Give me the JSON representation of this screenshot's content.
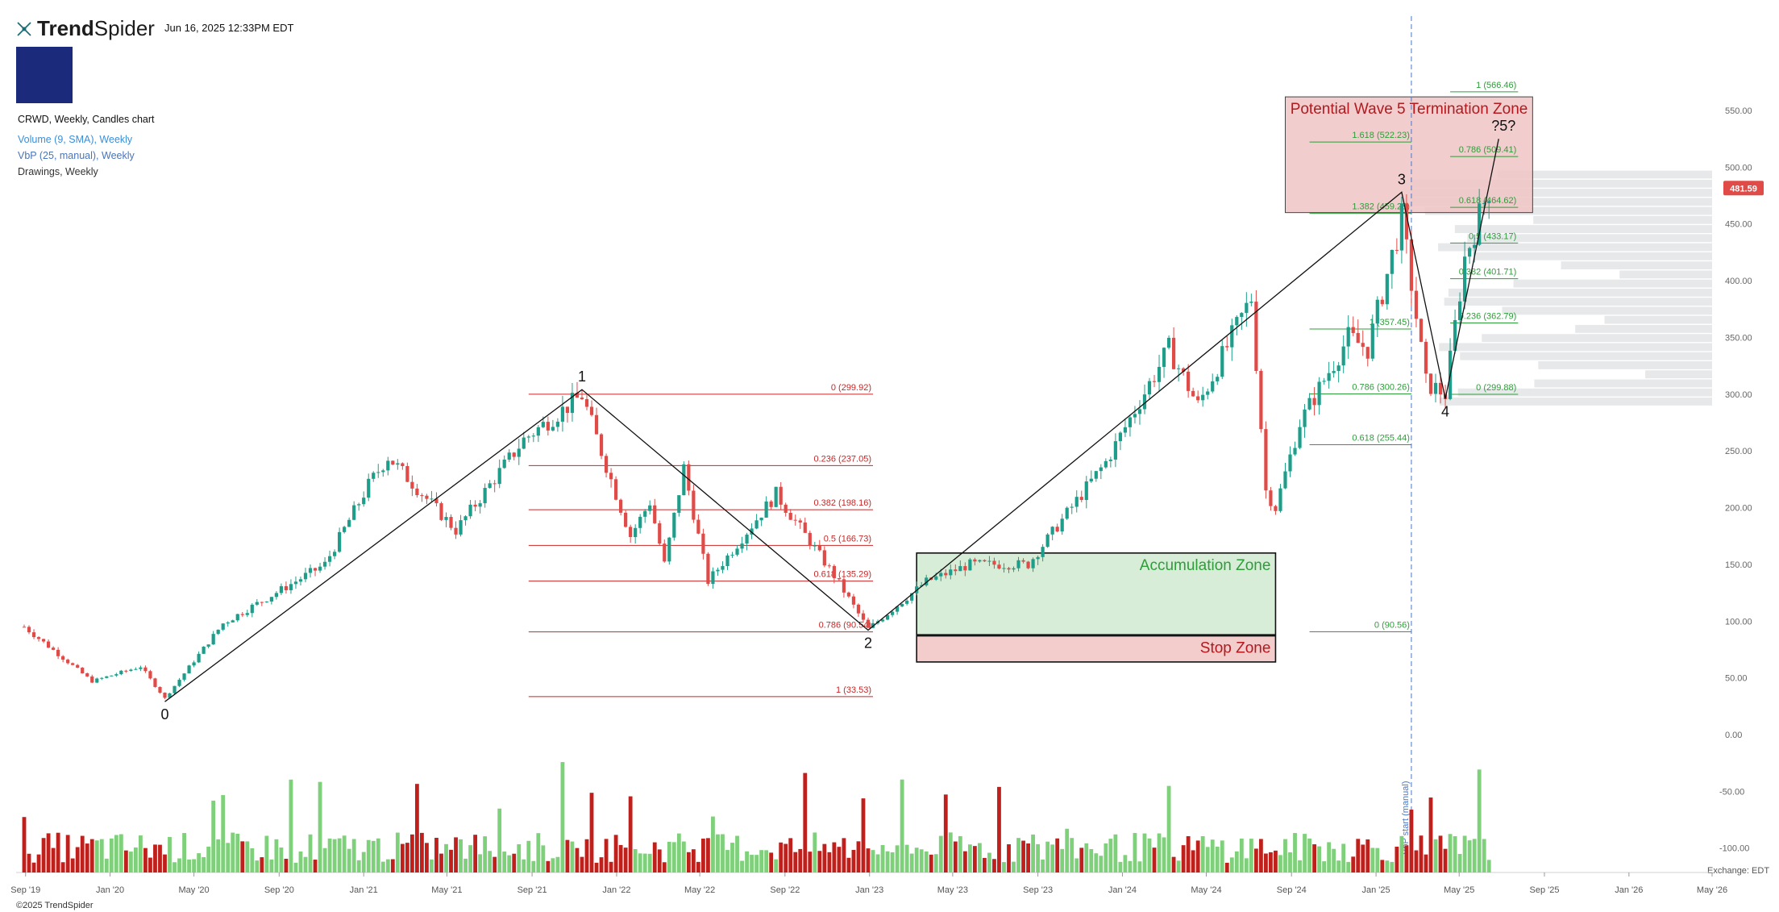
{
  "header": {
    "brand_bold": "Trend",
    "brand_light": "Spider",
    "datetime": "Jun 16, 2025 12:33PM EDT",
    "legend": [
      "CRWD, Weekly, Candles chart",
      "Volume (9, SMA), Weekly",
      "VbP (25, manual), Weekly",
      "Drawings, Weekly"
    ],
    "copyright": "©2025 TrendSpider",
    "exchange": "Exchange: EDT"
  },
  "colors": {
    "up": "#1e9e8a",
    "down": "#e04a47",
    "vol_up": "#7fd07a",
    "vol_down": "#c0201c",
    "fib_red": "#c62828",
    "fib_green": "#2e9d3a",
    "termination_fill": "#eec4c4",
    "accumulation_fill": "#d3ebd3",
    "stop_fill": "#f2c7c7",
    "vbp": "#e6e8ea",
    "price_tag": "#e04a47",
    "vline": "#4a78c8"
  },
  "chart_data": {
    "type": "candlestick",
    "symbol": "CRWD",
    "interval": "Weekly",
    "ylim": [
      -130,
      565
    ],
    "price_ticks": [
      "550.00",
      "500.00",
      "450.00",
      "400.00",
      "350.00",
      "300.00",
      "250.00",
      "200.00",
      "150.00",
      "100.00",
      "50.00",
      "0.00"
    ],
    "volume_ticks": [
      "-50.00",
      "-100.00"
    ],
    "x_ticks": [
      "Sep '19",
      "Jan '20",
      "May '20",
      "Sep '20",
      "Jan '21",
      "May '21",
      "Sep '21",
      "Jan '22",
      "May '22",
      "Sep '22",
      "Jan '23",
      "May '23",
      "Sep '23",
      "Jan '24",
      "May '24",
      "Sep '24",
      "Jan '25",
      "May '25",
      "Sep '25",
      "Jan '26",
      "May '26"
    ],
    "last_price": "481.59",
    "price_path": [
      [
        "2019-08-30",
        95
      ],
      [
        "2019-12-06",
        47
      ],
      [
        "2020-02-14",
        60
      ],
      [
        "2020-03-20",
        32
      ],
      [
        "2020-06-12",
        98
      ],
      [
        "2020-11-06",
        150
      ],
      [
        "2021-01-08",
        220
      ],
      [
        "2021-02-05",
        245
      ],
      [
        "2021-05-14",
        180
      ],
      [
        "2021-08-20",
        260
      ],
      [
        "2021-11-12",
        299
      ],
      [
        "2022-01-21",
        175
      ],
      [
        "2022-02-18",
        205
      ],
      [
        "2022-03-11",
        150
      ],
      [
        "2022-04-08",
        235
      ],
      [
        "2022-05-13",
        135
      ],
      [
        "2022-08-19",
        212
      ],
      [
        "2022-11-11",
        140
      ],
      [
        "2022-12-30",
        93
      ],
      [
        "2023-03-24",
        135
      ],
      [
        "2023-05-26",
        150
      ],
      [
        "2023-08-18",
        150
      ],
      [
        "2023-12-08",
        240
      ],
      [
        "2024-03-08",
        340
      ],
      [
        "2024-04-19",
        290
      ],
      [
        "2024-07-05",
        385
      ],
      [
        "2024-07-26",
        215
      ],
      [
        "2024-08-09",
        200
      ],
      [
        "2024-09-13",
        275
      ],
      [
        "2024-11-22",
        350
      ],
      [
        "2024-12-20",
        340
      ],
      [
        "2025-02-07",
        455
      ],
      [
        "2025-03-14",
        310
      ],
      [
        "2025-04-11",
        300
      ],
      [
        "2025-05-09",
        420
      ],
      [
        "2025-06-13",
        481.59
      ]
    ],
    "wave_labels": [
      {
        "label": "0",
        "date": "2020-03-20",
        "price": 29
      },
      {
        "label": "1",
        "date": "2021-11-12",
        "price": 304
      },
      {
        "label": "2",
        "date": "2022-12-30",
        "price": 92
      },
      {
        "label": "3",
        "date": "2025-02-07",
        "price": 478
      },
      {
        "label": "4",
        "date": "2025-04-11",
        "price": 296
      },
      {
        "label": "?5?",
        "date": "2025-06-27",
        "price": 525
      }
    ],
    "wave_targets": [
      "Potential Wave 5 Termination Zone"
    ],
    "fib_retracement_1_2": [
      {
        "label": "0 (299.92)",
        "price": 299.92
      },
      {
        "label": "0.236 (237.05)",
        "price": 237.05
      },
      {
        "label": "0.382 (198.16)",
        "price": 198.16
      },
      {
        "label": "0.5 (166.73)",
        "price": 166.73
      },
      {
        "label": "0.618 (135.29)",
        "price": 135.29
      },
      {
        "label": "0.786 (90.54)",
        "price": 90.54
      },
      {
        "label": "1 (33.53)",
        "price": 33.53
      }
    ],
    "fib_extension_3": [
      {
        "label": "1.618 (522.23)",
        "price": 522.23
      },
      {
        "label": "1.382 (459.28)",
        "price": 459.28
      },
      {
        "label": "1 (357.45)",
        "price": 357.45
      },
      {
        "label": "0.786 (300.26)",
        "price": 300.26
      },
      {
        "label": "0.618 (255.44)",
        "price": 255.44
      },
      {
        "label": "0 (90.56)",
        "price": 90.56
      }
    ],
    "fib_retracement_3_4": [
      {
        "label": "1 (566.46)",
        "price": 566.46
      },
      {
        "label": "0.786 (509.41)",
        "price": 509.41
      },
      {
        "label": "0.618 (464.62)",
        "price": 464.62
      },
      {
        "label": "0.5 (433.17)",
        "price": 433.17
      },
      {
        "label": "0.382 (401.71)",
        "price": 401.71
      },
      {
        "label": "0.236 (362.79)",
        "price": 362.79
      },
      {
        "label": "0 (299.88)",
        "price": 299.88
      }
    ],
    "zones": [
      {
        "label": "Potential Wave 5 Termination Zone",
        "price_low": 460,
        "price_high": 562,
        "start": "2024-08-23",
        "end": "2025-08-15"
      },
      {
        "label": "Accumulation Zone",
        "price_low": 88,
        "price_high": 160,
        "start": "2023-03-10",
        "end": "2024-08-09"
      },
      {
        "label": "Stop Zone",
        "price_low": 64,
        "price_high": 87,
        "start": "2023-03-10",
        "end": "2024-08-09"
      }
    ],
    "annotations": [
      "VbP start (manual)"
    ],
    "vbp_start": "2025-02-21",
    "legend_position": "top-left"
  }
}
